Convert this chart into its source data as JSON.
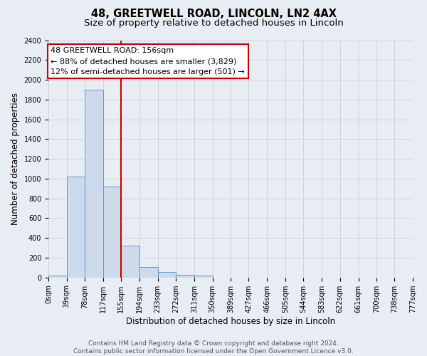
{
  "title": "48, GREETWELL ROAD, LINCOLN, LN2 4AX",
  "subtitle": "Size of property relative to detached houses in Lincoln",
  "xlabel": "Distribution of detached houses by size in Lincoln",
  "ylabel": "Number of detached properties",
  "bin_edges": [
    0,
    39,
    78,
    117,
    155,
    194,
    233,
    272,
    311,
    350,
    389,
    427,
    466,
    505,
    544,
    583,
    622,
    661,
    700,
    738,
    777
  ],
  "bin_heights": [
    20,
    1020,
    1900,
    920,
    320,
    105,
    55,
    30,
    20,
    0,
    0,
    0,
    0,
    0,
    0,
    0,
    0,
    0,
    0,
    0
  ],
  "bar_facecolor": "#ccdaeb",
  "bar_edgecolor": "#5b9bd5",
  "vline_x": 155,
  "vline_color": "#cc0000",
  "annotation_line1": "48 GREETWELL ROAD: 156sqm",
  "annotation_line2": "← 88% of detached houses are smaller (3,829)",
  "annotation_line3": "12% of semi-detached houses are larger (501) →",
  "annotation_box_facecolor": "white",
  "annotation_box_edgecolor": "#cc0000",
  "ylim": [
    0,
    2400
  ],
  "yticks": [
    0,
    200,
    400,
    600,
    800,
    1000,
    1200,
    1400,
    1600,
    1800,
    2000,
    2200,
    2400
  ],
  "footer_text": "Contains HM Land Registry data © Crown copyright and database right 2024.\nContains public sector information licensed under the Open Government Licence v3.0.",
  "background_color": "#e8edf3",
  "plot_background_color": "#e8edf3",
  "grid_color": "#c8d0da",
  "title_fontsize": 10.5,
  "subtitle_fontsize": 9.5,
  "tick_label_fontsize": 7,
  "axis_label_fontsize": 8.5,
  "annotation_fontsize": 8,
  "footer_fontsize": 6.5
}
